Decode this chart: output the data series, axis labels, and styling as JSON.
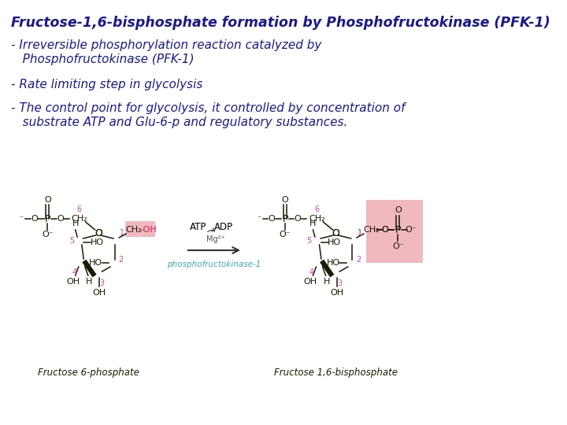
{
  "title": "Fructose-1,6-bisphosphate formation by Phosphofructokinase (PFK-1)",
  "title_color": "#1a1a8c",
  "title_fontsize": 12.5,
  "bullet1_line1": "- Irreversible phosphorylation reaction catalyzed by",
  "bullet1_line2": "   Phosphofructokinase (PFK-1)",
  "bullet2": "- Rate limiting step in glycolysis",
  "bullet3_line1": "- The control point for glycolysis, it controlled by concentration of",
  "bullet3_line2": "   substrate ATP and Glu-6-p and regulatory substances.",
  "text_color": "#1a1a8c",
  "text_fontsize": 11,
  "bg_color": "#ffffff",
  "pink_highlight": "#f2b8c0",
  "enzyme_color": "#3aada8",
  "mol_color": "#1a1a00",
  "number_color": "#cc44aa",
  "lw": 1.1
}
